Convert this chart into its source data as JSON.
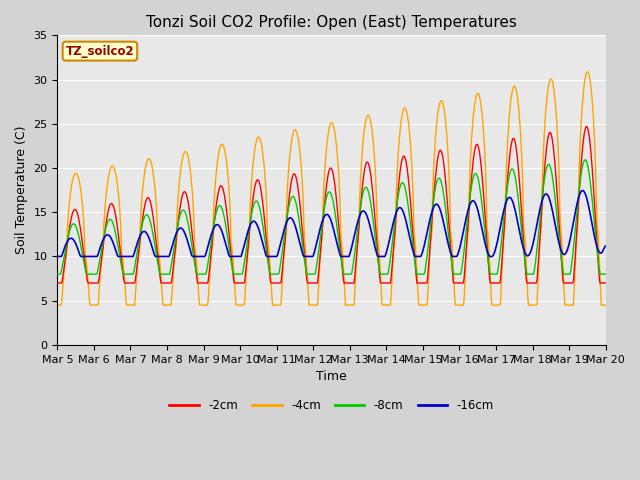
{
  "title": "Tonzi Soil CO2 Profile: Open (East) Temperatures",
  "xlabel": "Time",
  "ylabel": "Soil Temperature (C)",
  "ylim": [
    0,
    35
  ],
  "xlim_days": [
    5,
    20
  ],
  "x_ticks": [
    5,
    6,
    7,
    8,
    9,
    10,
    11,
    12,
    13,
    14,
    15,
    16,
    17,
    18,
    19,
    20
  ],
  "x_tick_labels": [
    "Mar 5",
    "Mar 6",
    "Mar 7",
    "Mar 8",
    "Mar 9",
    "Mar 10",
    "Mar 11",
    "Mar 12",
    "Mar 13",
    "Mar 14",
    "Mar 15",
    "Mar 16",
    "Mar 17",
    "Mar 18",
    "Mar 19",
    "Mar 20"
  ],
  "legend_label": "TZ_soilco2",
  "series": [
    {
      "label": "-2cm",
      "color": "#FF0000"
    },
    {
      "label": "-4cm",
      "color": "#FFA500"
    },
    {
      "label": "-8cm",
      "color": "#00CC00"
    },
    {
      "label": "-16cm",
      "color": "#0000CC"
    }
  ],
  "plot_bg_color": "#E8E8E8",
  "fig_bg_color": "#D3D3D3",
  "title_fontsize": 11,
  "axis_fontsize": 9,
  "tick_fontsize": 8,
  "legend_box_facecolor": "#FFFFCC",
  "legend_box_edgecolor": "#CC8800",
  "grid_color": "#FFFFFF",
  "yticks": [
    0,
    5,
    10,
    15,
    20,
    25,
    30,
    35
  ]
}
